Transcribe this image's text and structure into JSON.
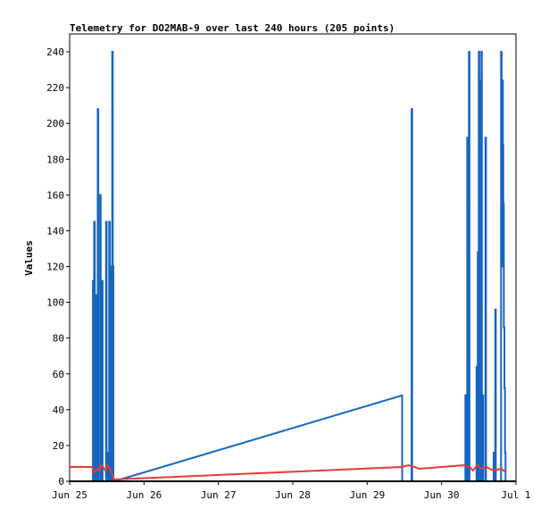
{
  "chart_data": {
    "type": "line",
    "title": "Telemetry for DO2MAB-9 over last 240 hours (205 points)",
    "xlabel": "",
    "ylabel": "Values",
    "xlim": [
      0,
      6
    ],
    "ylim": [
      0,
      250
    ],
    "x_unit": "days since Jun 25",
    "x_ticks": [
      {
        "value": 0,
        "label": "Jun 25"
      },
      {
        "value": 1,
        "label": "Jun 26"
      },
      {
        "value": 2,
        "label": "Jun 27"
      },
      {
        "value": 3,
        "label": "Jun 28"
      },
      {
        "value": 4,
        "label": "Jun 29"
      },
      {
        "value": 5,
        "label": "Jun 30"
      },
      {
        "value": 6,
        "label": "Jul 1"
      }
    ],
    "y_ticks": [
      0,
      20,
      40,
      60,
      80,
      100,
      120,
      140,
      160,
      180,
      200,
      220,
      240
    ],
    "grid": false,
    "legend": "none",
    "series": [
      {
        "color": "#1565c0",
        "points": [
          [
            0.313,
            0
          ],
          [
            0.313,
            112
          ],
          [
            0.323,
            112
          ],
          [
            0.323,
            0
          ],
          [
            0.33,
            0
          ],
          [
            0.33,
            145
          ],
          [
            0.338,
            145
          ],
          [
            0.338,
            0
          ],
          [
            0.352,
            0
          ],
          [
            0.352,
            48
          ],
          [
            0.357,
            48
          ],
          [
            0.357,
            0
          ],
          [
            0.362,
            0
          ],
          [
            0.362,
            104
          ],
          [
            0.37,
            104
          ],
          [
            0.37,
            0
          ],
          [
            0.378,
            0
          ],
          [
            0.378,
            208
          ],
          [
            0.385,
            208
          ],
          [
            0.385,
            0
          ],
          [
            0.41,
            0
          ],
          [
            0.41,
            160
          ],
          [
            0.418,
            160
          ],
          [
            0.418,
            0
          ],
          [
            0.435,
            0
          ],
          [
            0.435,
            112
          ],
          [
            0.443,
            112
          ],
          [
            0.443,
            0
          ],
          [
            0.49,
            0
          ],
          [
            0.49,
            145
          ],
          [
            0.497,
            145
          ],
          [
            0.497,
            0
          ],
          [
            0.506,
            0
          ],
          [
            0.506,
            16
          ],
          [
            0.512,
            16
          ],
          [
            0.512,
            0
          ],
          [
            0.532,
            0
          ],
          [
            0.532,
            145
          ],
          [
            0.54,
            145
          ],
          [
            0.54,
            0
          ],
          [
            0.56,
            0
          ],
          [
            0.56,
            120
          ],
          [
            0.566,
            120
          ],
          [
            0.566,
            0
          ],
          [
            0.572,
            0
          ],
          [
            0.572,
            240
          ],
          [
            0.579,
            240
          ],
          [
            0.579,
            0
          ],
          [
            0.582,
            0
          ],
          [
            0.582,
            120
          ],
          [
            0.588,
            120
          ],
          [
            0.588,
            0
          ],
          [
            0.6,
            0
          ],
          [
            4.47,
            48
          ],
          [
            4.47,
            0
          ],
          [
            4.597,
            0
          ],
          [
            4.597,
            208
          ],
          [
            4.604,
            208
          ],
          [
            4.604,
            0
          ],
          [
            5.32,
            0
          ],
          [
            5.32,
            48
          ],
          [
            5.327,
            48
          ],
          [
            5.327,
            0
          ],
          [
            5.345,
            0
          ],
          [
            5.345,
            192
          ],
          [
            5.352,
            192
          ],
          [
            5.352,
            0
          ],
          [
            5.368,
            0
          ],
          [
            5.368,
            240
          ],
          [
            5.375,
            240
          ],
          [
            5.375,
            0
          ],
          [
            5.47,
            0
          ],
          [
            5.47,
            64
          ],
          [
            5.477,
            64
          ],
          [
            5.477,
            0
          ],
          [
            5.486,
            0
          ],
          [
            5.486,
            128
          ],
          [
            5.493,
            128
          ],
          [
            5.493,
            0
          ],
          [
            5.5,
            0
          ],
          [
            5.5,
            240
          ],
          [
            5.507,
            240
          ],
          [
            5.507,
            0
          ],
          [
            5.518,
            0
          ],
          [
            5.518,
            224
          ],
          [
            5.524,
            224
          ],
          [
            5.524,
            0
          ],
          [
            5.535,
            0
          ],
          [
            5.535,
            240
          ],
          [
            5.542,
            240
          ],
          [
            5.542,
            0
          ],
          [
            5.552,
            0
          ],
          [
            5.552,
            48
          ],
          [
            5.559,
            48
          ],
          [
            5.559,
            0
          ],
          [
            5.59,
            0
          ],
          [
            5.59,
            192
          ],
          [
            5.597,
            192
          ],
          [
            5.597,
            0
          ],
          [
            5.7,
            0
          ],
          [
            5.7,
            16
          ],
          [
            5.707,
            16
          ],
          [
            5.707,
            0
          ],
          [
            5.722,
            0
          ],
          [
            5.722,
            96
          ],
          [
            5.729,
            96
          ],
          [
            5.729,
            0
          ],
          [
            5.8,
            0
          ],
          [
            5.8,
            240
          ],
          [
            5.807,
            240
          ],
          [
            5.807,
            120
          ],
          [
            5.816,
            120
          ],
          [
            5.816,
            224
          ],
          [
            5.823,
            224
          ],
          [
            5.823,
            188
          ],
          [
            5.83,
            188
          ],
          [
            5.83,
            155
          ],
          [
            5.837,
            155
          ],
          [
            5.837,
            86
          ],
          [
            5.845,
            86
          ],
          [
            5.845,
            52
          ],
          [
            5.852,
            52
          ],
          [
            5.852,
            16
          ],
          [
            5.86,
            16
          ],
          [
            5.86,
            0
          ]
        ]
      },
      {
        "color": "#e53935",
        "points": [
          [
            0.0,
            8
          ],
          [
            0.3,
            8
          ],
          [
            0.33,
            5
          ],
          [
            0.36,
            7
          ],
          [
            0.4,
            6
          ],
          [
            0.42,
            9
          ],
          [
            0.45,
            8
          ],
          [
            0.48,
            6
          ],
          [
            0.51,
            9
          ],
          [
            0.54,
            7
          ],
          [
            0.6,
            1
          ],
          [
            4.46,
            8
          ],
          [
            4.56,
            9
          ],
          [
            4.7,
            7
          ],
          [
            5.3,
            9
          ],
          [
            5.38,
            8
          ],
          [
            5.42,
            6
          ],
          [
            5.48,
            9
          ],
          [
            5.53,
            7
          ],
          [
            5.6,
            8
          ],
          [
            5.7,
            6
          ],
          [
            5.8,
            7
          ],
          [
            5.87,
            5
          ]
        ]
      },
      {
        "color": "#000000",
        "points": [
          [
            0.0,
            0
          ],
          [
            6.0,
            0
          ]
        ]
      }
    ]
  }
}
